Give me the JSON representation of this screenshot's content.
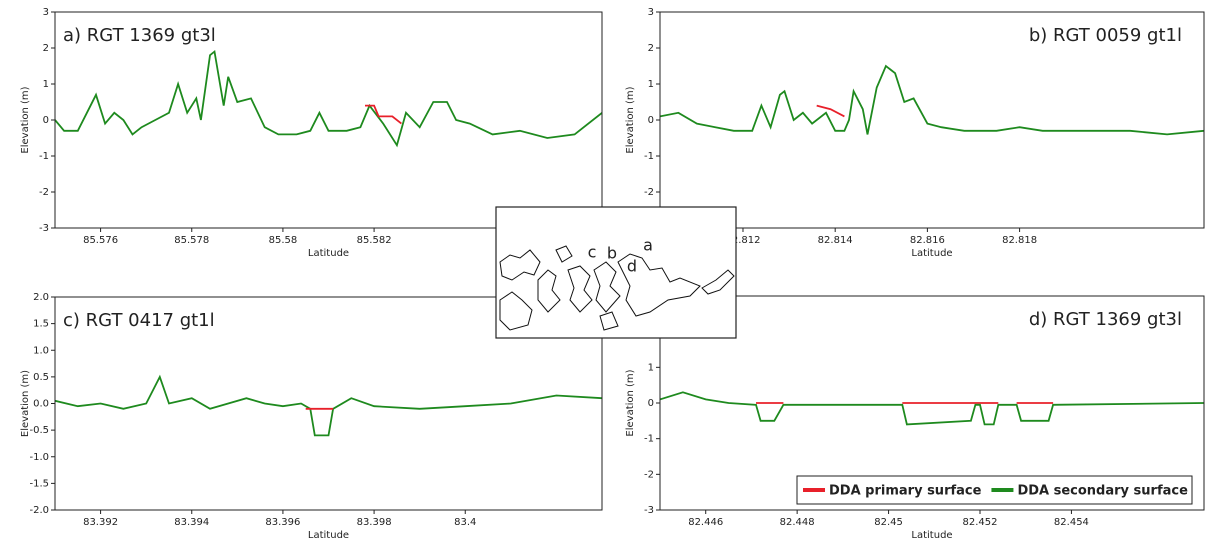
{
  "chart_data": [
    {
      "type": "line",
      "title": "a) RGT 1369 gt3l",
      "xlabel": "Latitude",
      "ylabel": "Elevation (m)",
      "xlim": [
        85.575,
        85.587
      ],
      "xticks": [
        85.576,
        85.578,
        85.58,
        85.582
      ],
      "ylim": [
        -3,
        3
      ],
      "yticks": [
        -3,
        -2,
        -1,
        0,
        1,
        2,
        3
      ],
      "series": [
        {
          "color": "#1e8a1e",
          "x": [
            85.575,
            85.5752,
            85.5755,
            85.5757,
            85.5759,
            85.5761,
            85.5763,
            85.5765,
            85.5767,
            85.5769,
            85.5772,
            85.5775,
            85.5777,
            85.5779,
            85.5781,
            85.5782,
            85.5784,
            85.5785,
            85.5787,
            85.5788,
            85.579,
            85.5793,
            85.5796,
            85.5799,
            85.5803,
            85.5806,
            85.5808,
            85.581,
            85.5814,
            85.5817,
            85.5819,
            85.5822,
            85.5825,
            85.5827,
            85.583,
            85.5833,
            85.5836,
            85.5838,
            85.5841,
            85.5846,
            85.5852,
            85.5858,
            85.5864,
            85.587
          ],
          "values": [
            0.0,
            -0.3,
            -0.3,
            0.2,
            0.7,
            -0.1,
            0.2,
            0.0,
            -0.4,
            -0.2,
            0.0,
            0.2,
            1.0,
            0.2,
            0.6,
            0.0,
            1.8,
            1.9,
            0.4,
            1.2,
            0.5,
            0.6,
            -0.2,
            -0.4,
            -0.4,
            -0.3,
            0.2,
            -0.3,
            -0.3,
            -0.2,
            0.4,
            -0.1,
            -0.7,
            0.2,
            -0.2,
            0.5,
            0.5,
            0.0,
            -0.1,
            -0.4,
            -0.3,
            -0.5,
            -0.4,
            0.2
          ]
        },
        {
          "color": "#e8202a",
          "x": [
            85.5818,
            85.582,
            85.5821,
            85.5824,
            85.5826
          ],
          "values": [
            0.4,
            0.4,
            0.1,
            0.1,
            -0.1
          ]
        }
      ]
    },
    {
      "type": "line",
      "title": "b) RGT 0059 gt1l",
      "xlabel": "Latitude",
      "ylabel": "Elevation (m)",
      "xlim": [
        82.8102,
        82.822
      ],
      "xticks": [
        82.812,
        82.814,
        82.816,
        82.818
      ],
      "ylim": [
        -3,
        3
      ],
      "yticks": [
        -3,
        -2,
        -1,
        0,
        1,
        2,
        3
      ],
      "series": [
        {
          "color": "#1e8a1e",
          "x": [
            82.8102,
            82.8106,
            82.811,
            82.8114,
            82.8118,
            82.8122,
            82.8124,
            82.8126,
            82.8128,
            82.8129,
            82.8131,
            82.8133,
            82.8135,
            82.8138,
            82.814,
            82.8142,
            82.8143,
            82.8144,
            82.8146,
            82.8147,
            82.8149,
            82.8151,
            82.8153,
            82.8155,
            82.8157,
            82.816,
            82.8163,
            82.8168,
            82.8175,
            82.818,
            82.8185,
            82.819,
            82.8197,
            82.8204,
            82.8212,
            82.822
          ],
          "values": [
            0.1,
            0.2,
            -0.1,
            -0.2,
            -0.3,
            -0.3,
            0.4,
            -0.2,
            0.7,
            0.8,
            0.0,
            0.2,
            -0.1,
            0.2,
            -0.3,
            -0.3,
            0.0,
            0.8,
            0.3,
            -0.4,
            0.9,
            1.5,
            1.3,
            0.5,
            0.6,
            -0.1,
            -0.2,
            -0.3,
            -0.3,
            -0.2,
            -0.3,
            -0.3,
            -0.3,
            -0.3,
            -0.4,
            -0.3
          ]
        },
        {
          "color": "#e8202a",
          "x": [
            82.8136,
            82.8139,
            82.8142
          ],
          "values": [
            0.4,
            0.3,
            0.1
          ]
        }
      ]
    },
    {
      "type": "line",
      "title": "c) RGT 0417 gt1l",
      "xlabel": "Latitude",
      "ylabel": "Elevation (m)",
      "xlim": [
        83.391,
        83.403
      ],
      "xticks": [
        83.392,
        83.394,
        83.396,
        83.398,
        83.4
      ],
      "ylim": [
        -2,
        2
      ],
      "yticks": [
        {
          "value": -2,
          "label": "-2.0"
        },
        -1.5,
        {
          "value": -1,
          "label": "-1.0"
        },
        -0.5,
        {
          "value": 0,
          "label": "0.0"
        },
        0.5,
        {
          "value": 1,
          "label": "1.0"
        },
        1.5,
        {
          "value": 2,
          "label": "2.0"
        }
      ],
      "series": [
        {
          "color": "#1e8a1e",
          "x": [
            83.391,
            83.3915,
            83.392,
            83.3925,
            83.393,
            83.3933,
            83.3935,
            83.394,
            83.3944,
            83.3948,
            83.3952,
            83.3956,
            83.396,
            83.3964,
            83.3966,
            83.3967,
            83.397,
            83.3971,
            83.3975,
            83.398,
            83.399,
            83.4,
            83.401,
            83.402,
            83.403
          ],
          "values": [
            0.05,
            -0.05,
            0.0,
            -0.1,
            0.0,
            0.5,
            0.0,
            0.1,
            -0.1,
            0.0,
            0.1,
            0.0,
            -0.05,
            0.0,
            -0.1,
            -0.6,
            -0.6,
            -0.1,
            0.1,
            -0.05,
            -0.1,
            -0.05,
            0.0,
            0.15,
            0.1
          ]
        },
        {
          "color": "#e8202a",
          "x": [
            83.3965,
            83.3971
          ],
          "values": [
            -0.1,
            -0.1
          ]
        }
      ]
    },
    {
      "type": "line",
      "title": "d) RGT 1369 gt3l",
      "xlabel": "Latitude",
      "ylabel": "Elevation (m)",
      "xlim": [
        82.445,
        82.4569
      ],
      "xticks": [
        82.446,
        82.448,
        82.45,
        82.452,
        82.454
      ],
      "ylim": [
        -3,
        3
      ],
      "yticks": [
        -3,
        -2,
        -1,
        0,
        1,
        2,
        3
      ],
      "legend": "lower right",
      "series": [
        {
          "name": "DDA primary surface",
          "color": "#e8202a",
          "x": [
            82.4471,
            82.4477,
            null,
            82.4503,
            82.4524,
            null,
            82.4528,
            82.4536
          ],
          "values": [
            0,
            0,
            null,
            0,
            0,
            null,
            0,
            0
          ]
        },
        {
          "name": "DDA secondary surface",
          "color": "#1e8a1e",
          "x": [
            82.445,
            82.4455,
            82.446,
            82.4465,
            82.4471,
            82.4472,
            82.4475,
            82.4477,
            82.4503,
            82.4504,
            82.4518,
            82.4519,
            82.452,
            82.4521,
            82.4523,
            82.4524,
            82.4528,
            82.4529,
            82.4535,
            82.4536,
            82.4569
          ],
          "values": [
            0.1,
            0.3,
            0.1,
            0.0,
            -0.05,
            -0.5,
            -0.5,
            -0.05,
            -0.05,
            -0.6,
            -0.5,
            -0.05,
            -0.05,
            -0.6,
            -0.6,
            -0.05,
            -0.05,
            -0.5,
            -0.5,
            -0.05,
            0.0
          ]
        }
      ]
    }
  ],
  "inset_map": {
    "labels": [
      "c",
      "b",
      "d",
      "a"
    ]
  }
}
